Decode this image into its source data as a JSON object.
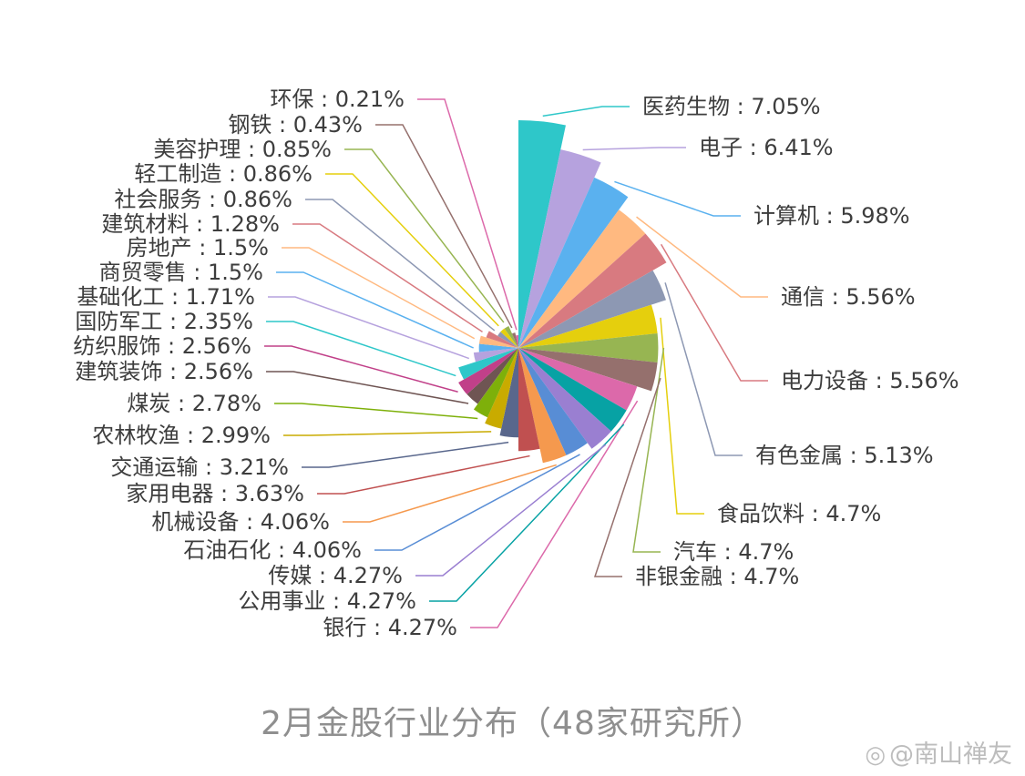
{
  "chart_data": {
    "type": "pie",
    "variant": "nightingale-rose",
    "caption": "2月金股行业分布（48家研究所）",
    "label_separator": " : ",
    "slices": [
      {
        "name": "医药生物",
        "value": 7.05,
        "label": "7.05%",
        "color": "#2ec7c9"
      },
      {
        "name": "电子",
        "value": 6.41,
        "label": "6.41%",
        "color": "#b6a2de"
      },
      {
        "name": "计算机",
        "value": 5.98,
        "label": "5.98%",
        "color": "#5ab1ef"
      },
      {
        "name": "通信",
        "value": 5.56,
        "label": "5.56%",
        "color": "#ffb980"
      },
      {
        "name": "电力设备",
        "value": 5.56,
        "label": "5.56%",
        "color": "#d87a80"
      },
      {
        "name": "有色金属",
        "value": 5.13,
        "label": "5.13%",
        "color": "#8d98b3"
      },
      {
        "name": "食品饮料",
        "value": 4.7,
        "label": "4.7%",
        "color": "#e5cf0d"
      },
      {
        "name": "汽车",
        "value": 4.7,
        "label": "4.7%",
        "color": "#97b552"
      },
      {
        "name": "非银金融",
        "value": 4.7,
        "label": "4.7%",
        "color": "#95706d"
      },
      {
        "name": "银行",
        "value": 4.27,
        "label": "4.27%",
        "color": "#dc69aa"
      },
      {
        "name": "公用事业",
        "value": 4.27,
        "label": "4.27%",
        "color": "#07a2a4"
      },
      {
        "name": "传媒",
        "value": 4.27,
        "label": "4.27%",
        "color": "#9a7fd1"
      },
      {
        "name": "石油石化",
        "value": 4.06,
        "label": "4.06%",
        "color": "#588dd5"
      },
      {
        "name": "机械设备",
        "value": 4.06,
        "label": "4.06%",
        "color": "#f5994e"
      },
      {
        "name": "家用电器",
        "value": 3.63,
        "label": "3.63%",
        "color": "#c05050"
      },
      {
        "name": "交通运输",
        "value": 3.21,
        "label": "3.21%",
        "color": "#59678c"
      },
      {
        "name": "农林牧渔",
        "value": 2.99,
        "label": "2.99%",
        "color": "#c9ab00"
      },
      {
        "name": "煤炭",
        "value": 2.78,
        "label": "2.78%",
        "color": "#7eb00a"
      },
      {
        "name": "建筑装饰",
        "value": 2.56,
        "label": "2.56%",
        "color": "#6f5553"
      },
      {
        "name": "纺织服饰",
        "value": 2.56,
        "label": "2.56%",
        "color": "#c14089"
      },
      {
        "name": "国防军工",
        "value": 2.35,
        "label": "2.35%",
        "color": "#2ec7c9"
      },
      {
        "name": "基础化工",
        "value": 1.71,
        "label": "1.71%",
        "color": "#b6a2de"
      },
      {
        "name": "商贸零售",
        "value": 1.5,
        "label": "1.5%",
        "color": "#5ab1ef"
      },
      {
        "name": "房地产",
        "value": 1.5,
        "label": "1.5%",
        "color": "#ffb980"
      },
      {
        "name": "建筑材料",
        "value": 1.28,
        "label": "1.28%",
        "color": "#d87a80"
      },
      {
        "name": "社会服务",
        "value": 0.86,
        "label": "0.86%",
        "color": "#8d98b3"
      },
      {
        "name": "轻工制造",
        "value": 0.86,
        "label": "0.86%",
        "color": "#e5cf0d"
      },
      {
        "name": "美容护理",
        "value": 0.85,
        "label": "0.85%",
        "color": "#97b552"
      },
      {
        "name": "钢铁",
        "value": 0.43,
        "label": "0.43%",
        "color": "#95706d"
      },
      {
        "name": "环保",
        "value": 0.21,
        "label": "0.21%",
        "color": "#dc69aa"
      }
    ]
  },
  "watermark": {
    "icon": "weibo-icon",
    "text": "@南山禅友"
  }
}
